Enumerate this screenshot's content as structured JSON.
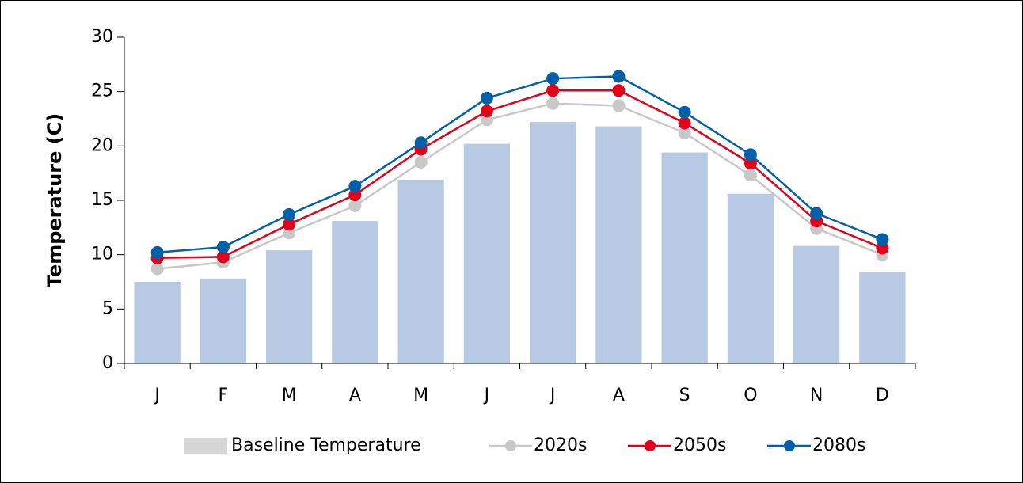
{
  "chart_data": {
    "type": "bar",
    "y_label": "Temperature (C)",
    "categories": [
      "J",
      "F",
      "M",
      "A",
      "M",
      "J",
      "J",
      "A",
      "S",
      "O",
      "N",
      "D"
    ],
    "series": [
      {
        "name": "Baseline Temperature",
        "type": "bar",
        "color": "#b8c9e3",
        "legend_color": "#d6d6d6",
        "values": [
          7.5,
          7.8,
          10.4,
          13.1,
          16.9,
          20.2,
          22.2,
          21.8,
          19.4,
          15.6,
          10.8,
          8.4
        ]
      },
      {
        "name": "2020s",
        "type": "line",
        "color": "#c8c8c8",
        "values": [
          8.7,
          9.3,
          12.0,
          14.5,
          18.5,
          22.4,
          23.9,
          23.7,
          21.2,
          17.3,
          12.4,
          10.0
        ]
      },
      {
        "name": "2050s",
        "type": "line",
        "color": "#e2001a",
        "values": [
          9.7,
          9.8,
          12.8,
          15.5,
          19.7,
          23.2,
          25.1,
          25.1,
          22.1,
          18.4,
          13.1,
          10.6
        ]
      },
      {
        "name": "2080s",
        "type": "line",
        "color": "#0060a8",
        "values": [
          10.2,
          10.7,
          13.7,
          16.3,
          20.3,
          24.4,
          26.2,
          26.4,
          23.1,
          19.2,
          13.8,
          11.4
        ]
      }
    ],
    "ylim": [
      0,
      30
    ],
    "yticks": [
      0,
      5,
      10,
      15,
      20,
      25,
      30
    ],
    "legend": "bottom"
  }
}
